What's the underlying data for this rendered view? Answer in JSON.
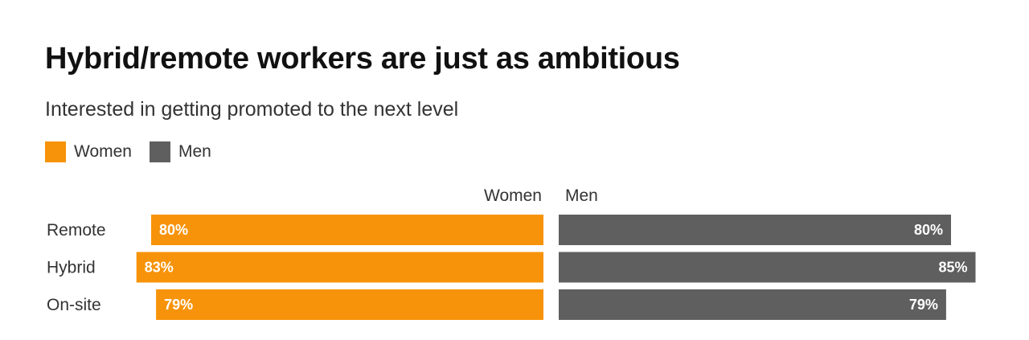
{
  "title": "Hybrid/remote workers are just as ambitious",
  "subtitle": "Interested in getting promoted to the next level",
  "legend": [
    {
      "label": "Women",
      "color": "#F7930A"
    },
    {
      "label": "Men",
      "color": "#5F5F5F"
    }
  ],
  "chart_data": {
    "type": "bar",
    "orientation": "horizontal",
    "layout": "diverging",
    "title": "Hybrid/remote workers are just as ambitious",
    "subtitle": "Interested in getting promoted to the next level",
    "categories": [
      "Remote",
      "Hybrid",
      "On-site"
    ],
    "series": [
      {
        "name": "Women",
        "color": "#F7930A",
        "values": [
          80,
          83,
          79
        ],
        "labels": [
          "80%",
          "83%",
          "79%"
        ]
      },
      {
        "name": "Men",
        "color": "#5F5F5F",
        "values": [
          80,
          85,
          79
        ],
        "labels": [
          "80%",
          "85%",
          "79%"
        ]
      }
    ],
    "unit": "%",
    "xlim": [
      0,
      100
    ],
    "grid": false,
    "legend_position": "top-left"
  }
}
